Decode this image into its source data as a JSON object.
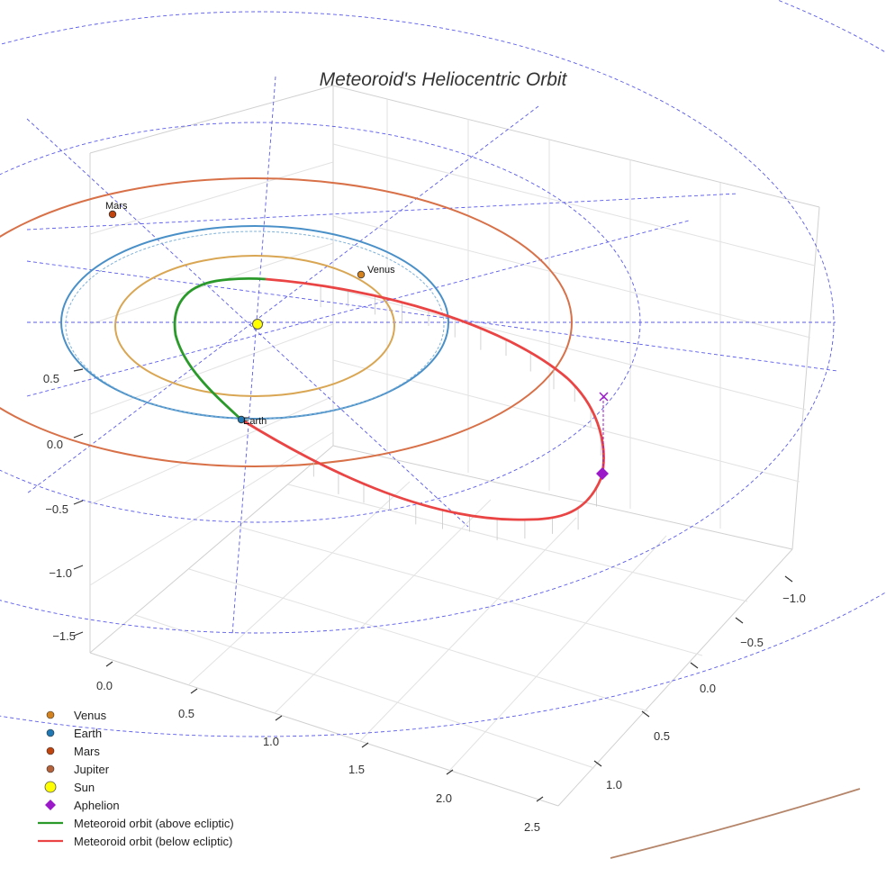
{
  "chart_data": {
    "type": "line",
    "title": "Meteoroid's Heliocentric Orbit",
    "projection": "3d",
    "grid": true,
    "legend_position": "bottom-left",
    "axes": {
      "z_ticks": [
        "0.5",
        "0.0",
        "−0.5",
        "−1.0",
        "−1.5"
      ],
      "x_ticks": [
        "0.0",
        "0.5",
        "1.0",
        "1.5",
        "2.0",
        "2.5"
      ],
      "y_ticks": [
        "−1.0",
        "−0.5",
        "0.0",
        "0.5",
        "1.0"
      ]
    },
    "bodies": [
      {
        "name": "Venus",
        "label": "Venus",
        "color": "#d4821e"
      },
      {
        "name": "Earth",
        "label": "Earth",
        "color": "#1f77b4"
      },
      {
        "name": "Mars",
        "label": "Mars",
        "color": "#c1440e"
      },
      {
        "name": "Sun",
        "color": "#ffff00"
      }
    ],
    "orbits": [
      {
        "body": "Venus",
        "color": "#d9a653"
      },
      {
        "body": "Earth",
        "color": "#4a90c8"
      },
      {
        "body": "Mars",
        "color": "#d87048"
      },
      {
        "body": "Jupiter",
        "color": "#b5856a"
      }
    ],
    "meteoroid": {
      "above_color": "#2a9a2a",
      "below_color": "#ea4444",
      "aphelion_color": "#9b19c9"
    },
    "legend": [
      {
        "label": "Venus",
        "marker": "dot",
        "color": "#d4821e"
      },
      {
        "label": "Earth",
        "marker": "dot",
        "color": "#1f77b4"
      },
      {
        "label": "Mars",
        "marker": "dot",
        "color": "#c1440e"
      },
      {
        "label": "Jupiter",
        "marker": "dot",
        "color": "#b5623a"
      },
      {
        "label": "Sun",
        "marker": "big-dot",
        "color": "#ffff00"
      },
      {
        "label": "Aphelion",
        "marker": "diamond",
        "color": "#9b19c9"
      },
      {
        "label": "Meteoroid orbit (above ecliptic)",
        "marker": "line",
        "color": "#2a9a2a"
      },
      {
        "label": "Meteoroid orbit (below ecliptic)",
        "marker": "line",
        "color": "#ea4444"
      }
    ]
  }
}
